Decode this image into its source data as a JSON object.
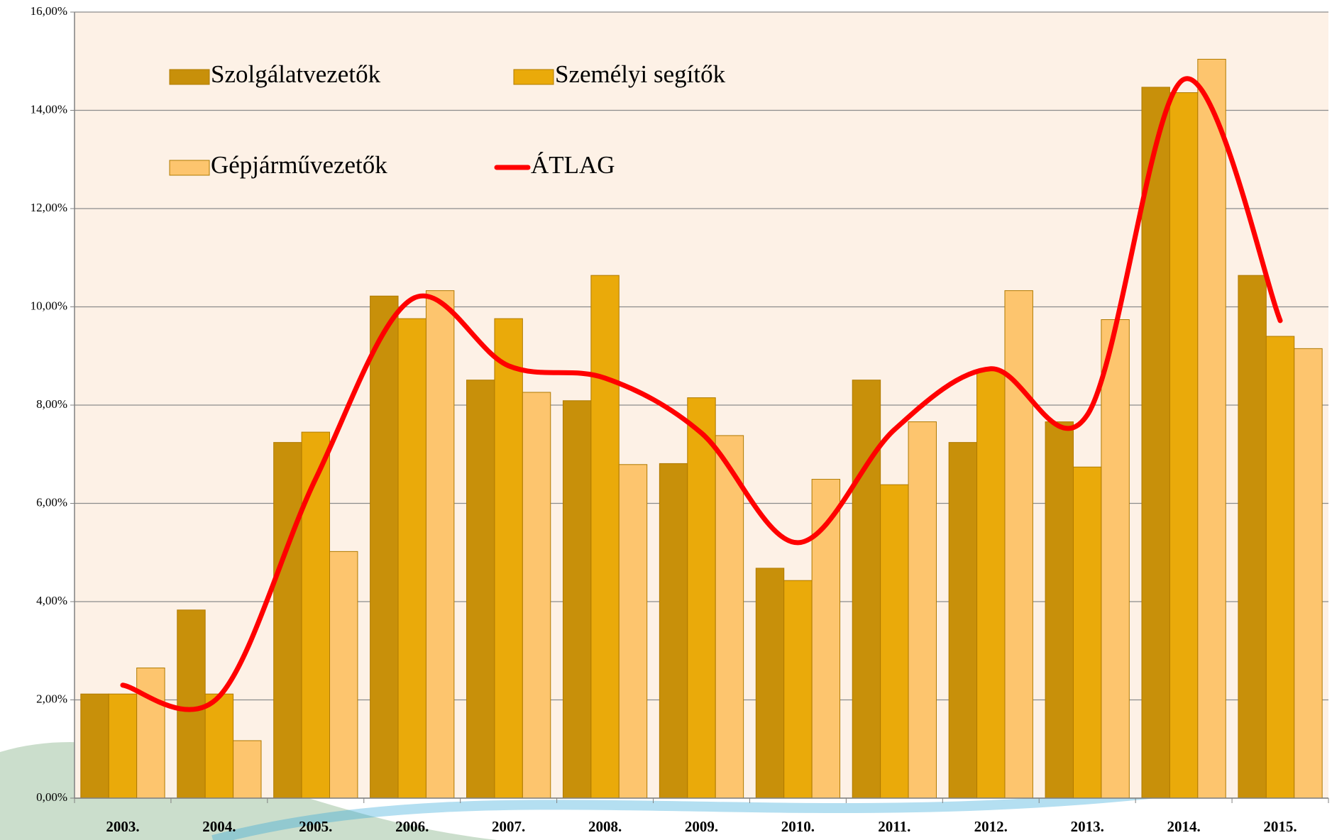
{
  "chart_data": {
    "type": "bar",
    "categories": [
      "2003.",
      "2004.",
      "2005.",
      "2006.",
      "2007.",
      "2008.",
      "2009.",
      "2010.",
      "2011.",
      "2012.",
      "2013.",
      "2014.",
      "2015."
    ],
    "series": [
      {
        "name": "Szolgálatvezetők",
        "color": "#c8900a",
        "values": [
          2.12,
          3.83,
          7.24,
          10.22,
          8.51,
          8.09,
          6.81,
          4.68,
          8.51,
          7.24,
          7.66,
          14.47,
          10.64
        ]
      },
      {
        "name": "Személyi segítők",
        "color": "#eaaa0a",
        "values": [
          2.12,
          2.12,
          7.45,
          9.76,
          9.76,
          10.64,
          8.15,
          4.43,
          6.38,
          8.7,
          6.74,
          14.36,
          9.4
        ]
      },
      {
        "name": "Gépjárművezetők",
        "color": "#fdc56e",
        "values": [
          2.65,
          1.17,
          5.02,
          10.33,
          8.26,
          6.79,
          7.38,
          6.49,
          7.66,
          10.33,
          9.74,
          15.04,
          9.15
        ]
      },
      {
        "name": "ÁTLAG",
        "color": "#ff0000",
        "type": "line",
        "values": [
          2.3,
          2.07,
          6.5,
          10.16,
          8.8,
          8.55,
          7.43,
          5.2,
          7.5,
          8.74,
          7.8,
          14.63,
          9.72
        ]
      }
    ],
    "ylim": [
      0,
      16
    ],
    "yticks": [
      {
        "value": 0,
        "label": "0,00%"
      },
      {
        "value": 2,
        "label": "2,00%"
      },
      {
        "value": 4,
        "label": "4,00%"
      },
      {
        "value": 6,
        "label": "6,00%"
      },
      {
        "value": 8,
        "label": "8,00%"
      },
      {
        "value": 10,
        "label": "10,00%"
      },
      {
        "value": 12,
        "label": "12,00%"
      },
      {
        "value": 14,
        "label": "14,00%"
      },
      {
        "value": 16,
        "label": "16,00%"
      }
    ],
    "grid": true
  }
}
